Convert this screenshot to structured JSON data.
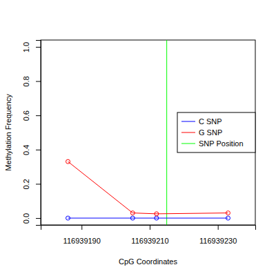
{
  "chart_data": {
    "type": "line",
    "x_label": "CpG Coordinates",
    "y_label": "Methylation Frequency",
    "x": [
      116939186,
      116939205,
      116939212,
      116939233
    ],
    "series": [
      {
        "name": "C SNP",
        "color": "#0000ff",
        "values": [
          0,
          0,
          0,
          0
        ]
      },
      {
        "name": "G SNP",
        "color": "#ff0000",
        "values": [
          0.33,
          0.03,
          0.025,
          0.03
        ]
      }
    ],
    "vlines": [
      {
        "name": "SNP Position",
        "color": "#00ff00",
        "value": 116939215
      }
    ],
    "marker": "circle",
    "xlim": [
      116939178,
      116939241
    ],
    "xticks": [
      116939190,
      116939210,
      116939230
    ],
    "ylim": [
      -0.04,
      1.04
    ],
    "yticks": [
      {
        "value": 0,
        "label": "0.0"
      },
      0.2,
      0.4,
      0.6,
      0.8,
      {
        "value": 1,
        "label": "1.0"
      }
    ],
    "legend": "right",
    "grid": false
  }
}
